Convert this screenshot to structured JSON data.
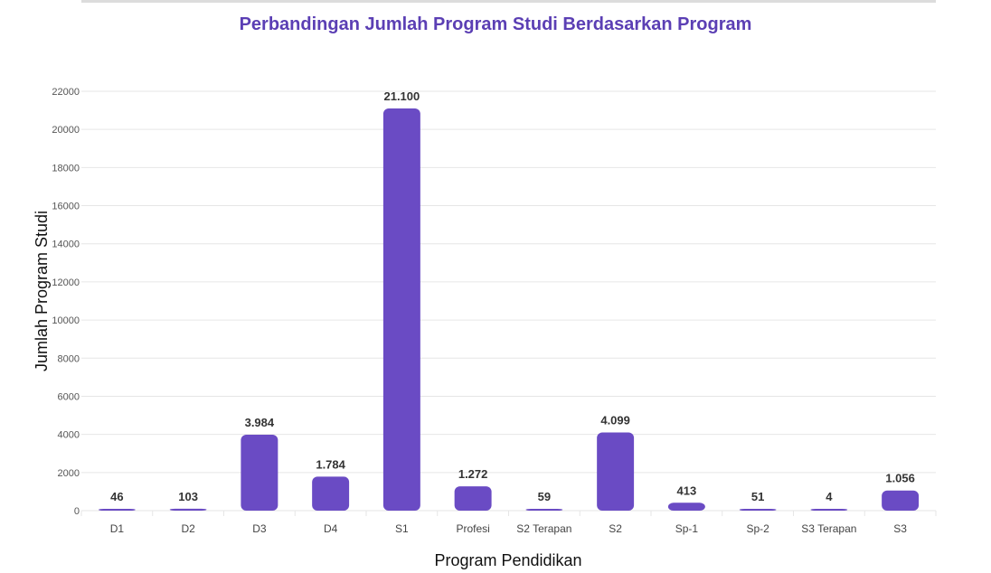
{
  "chart_data": {
    "type": "bar",
    "title": "Perbandingan Jumlah Program Studi Berdasarkan Program",
    "xlabel": "Program Pendidikan",
    "ylabel": "Jumlah Program Studi",
    "categories": [
      "D1",
      "D2",
      "D3",
      "D4",
      "S1",
      "Profesi",
      "S2 Terapan",
      "S2",
      "Sp-1",
      "Sp-2",
      "S3 Terapan",
      "S3"
    ],
    "values": [
      46,
      103,
      3984,
      1784,
      21100,
      1272,
      59,
      4099,
      413,
      51,
      4,
      1056
    ],
    "value_labels": [
      "46",
      "103",
      "3.984",
      "1.784",
      "21.100",
      "1.272",
      "59",
      "4.099",
      "413",
      "51",
      "4",
      "1.056"
    ],
    "ylim": [
      0,
      22000
    ],
    "yticks": [
      0,
      2000,
      4000,
      6000,
      8000,
      10000,
      12000,
      14000,
      16000,
      18000,
      20000,
      22000
    ],
    "grid": true,
    "bar_color": "#6a4bc4",
    "grid_color": "#e6e6e6"
  }
}
